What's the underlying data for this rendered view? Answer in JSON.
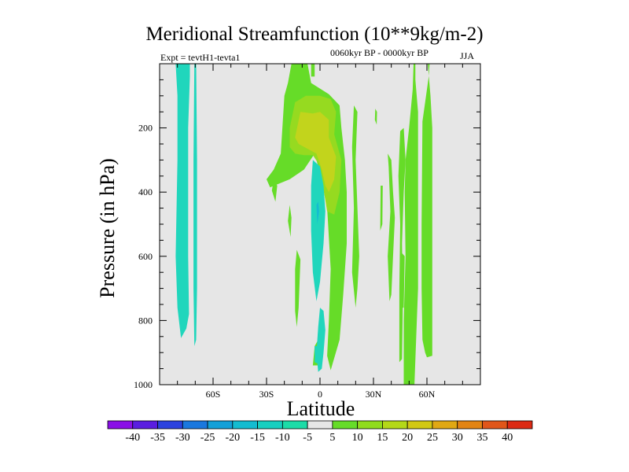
{
  "chart_data": {
    "type": "heatmap",
    "title": "Meridional Streamfunction (10**9kg/m-2)",
    "subtitle": "0060kyr BP - 0000kyr BP",
    "expt_label": "Expt = tevtH1-tevta1",
    "season": "JJA",
    "xlabel": "Latitude",
    "ylabel": "Pressure (in hPa)",
    "xlim": [
      -90,
      90
    ],
    "ylim": [
      1000,
      0
    ],
    "x_ticks": [
      {
        "value": -60,
        "label": "60S"
      },
      {
        "value": -30,
        "label": "30S"
      },
      {
        "value": 0,
        "label": "0"
      },
      {
        "value": 30,
        "label": "30N"
      },
      {
        "value": 60,
        "label": "60N"
      }
    ],
    "y_ticks": [
      {
        "value": 200,
        "label": "200"
      },
      {
        "value": 400,
        "label": "400"
      },
      {
        "value": 600,
        "label": "600"
      },
      {
        "value": 800,
        "label": "800"
      },
      {
        "value": 1000,
        "label": "1000"
      }
    ],
    "colorbar": {
      "labels": [
        "-40",
        "-35",
        "-30",
        "-25",
        "-20",
        "-15",
        "-10",
        "-5",
        "5",
        "10",
        "15",
        "20",
        "25",
        "30",
        "35",
        "40"
      ],
      "colors": [
        "#8a10e6",
        "#5a1ee0",
        "#2b42de",
        "#1a78de",
        "#14a0d8",
        "#14bcd0",
        "#18cfc0",
        "#1cdca8",
        "#e6e6e6",
        "#66dc28",
        "#90dc1c",
        "#b4d818",
        "#d2c814",
        "#e0a814",
        "#e28414",
        "#e0561a",
        "#dc2a14"
      ]
    },
    "regions": [
      {
        "level": "-10",
        "color": "#20d6bc",
        "pts": [
          [
            -81,
            0
          ],
          [
            -73,
            0
          ],
          [
            -73,
            40
          ],
          [
            -74,
            200
          ],
          [
            -74,
            600
          ],
          [
            -73.5,
            780
          ],
          [
            -75,
            825
          ],
          [
            -78,
            855
          ],
          [
            -80,
            760
          ],
          [
            -81,
            600
          ],
          [
            -80,
            300
          ],
          [
            -80,
            100
          ]
        ]
      },
      {
        "level": "-10",
        "color": "#20d6bc",
        "pts": [
          [
            -70.5,
            0
          ],
          [
            -69.5,
            0
          ],
          [
            -69,
            300
          ],
          [
            -69,
            700
          ],
          [
            -69.5,
            860
          ],
          [
            -70.5,
            880
          ],
          [
            -71,
            700
          ],
          [
            -71,
            300
          ]
        ]
      },
      {
        "level": "5",
        "color": "#66dc28",
        "pts": [
          [
            -16,
            0
          ],
          [
            -7,
            0
          ],
          [
            -5,
            60
          ],
          [
            5,
            95
          ],
          [
            11,
            130
          ],
          [
            12,
            200
          ],
          [
            14,
            300
          ],
          [
            15,
            400
          ],
          [
            15,
            560
          ],
          [
            13,
            720
          ],
          [
            11,
            860
          ],
          [
            6,
            955
          ],
          [
            4,
            910
          ],
          [
            5,
            800
          ],
          [
            6,
            640
          ],
          [
            4,
            450
          ],
          [
            0,
            340
          ],
          [
            -3,
            280
          ],
          [
            -9,
            330
          ],
          [
            -17,
            360
          ],
          [
            -28,
            385
          ],
          [
            -30,
            360
          ],
          [
            -26,
            330
          ],
          [
            -22,
            280
          ],
          [
            -20,
            100
          ],
          [
            -18,
            60
          ]
        ]
      },
      {
        "level": "10",
        "color": "#96da20",
        "pts": [
          [
            -17,
            200
          ],
          [
            -14,
            120
          ],
          [
            -8,
            100
          ],
          [
            0,
            100
          ],
          [
            6,
            110
          ],
          [
            9,
            150
          ],
          [
            8,
            220
          ],
          [
            12,
            300
          ],
          [
            11,
            400
          ],
          [
            8,
            470
          ],
          [
            4,
            460
          ],
          [
            2,
            390
          ],
          [
            -1,
            310
          ],
          [
            -4,
            285
          ],
          [
            -9,
            285
          ],
          [
            -14,
            280
          ],
          [
            -17,
            260
          ]
        ]
      },
      {
        "level": "15",
        "color": "#c2d41c",
        "pts": [
          [
            -14,
            230
          ],
          [
            -11,
            150
          ],
          [
            -4,
            155
          ],
          [
            0,
            150
          ],
          [
            5,
            175
          ],
          [
            5,
            230
          ],
          [
            9,
            290
          ],
          [
            8,
            360
          ],
          [
            5,
            400
          ],
          [
            3,
            380
          ],
          [
            1,
            330
          ],
          [
            -2,
            280
          ],
          [
            -7,
            265
          ],
          [
            -12,
            250
          ]
        ]
      },
      {
        "level": "5",
        "color": "#66dc28",
        "pts": [
          [
            -4,
            940
          ],
          [
            -3,
            880
          ],
          [
            -1,
            860
          ],
          [
            0,
            870
          ],
          [
            -1,
            940
          ]
        ]
      },
      {
        "level": "5",
        "color": "#66dc28",
        "pts": [
          [
            -13,
            580
          ],
          [
            -11,
            610
          ],
          [
            -12,
            760
          ],
          [
            -13,
            820
          ],
          [
            -14,
            770
          ],
          [
            -14,
            640
          ]
        ]
      },
      {
        "level": "5",
        "color": "#66dc28",
        "pts": [
          [
            -17,
            440
          ],
          [
            -16,
            480
          ],
          [
            -16.5,
            540
          ],
          [
            -18,
            490
          ]
        ]
      },
      {
        "level": "5",
        "color": "#66dc28",
        "pts": [
          [
            -26,
            360
          ],
          [
            -24,
            380
          ],
          [
            -25,
            430
          ],
          [
            -27,
            395
          ]
        ]
      },
      {
        "level": "5",
        "color": "#66dc28",
        "pts": [
          [
            -19,
            200
          ],
          [
            -17,
            235
          ],
          [
            -18,
            290
          ],
          [
            -20,
            240
          ]
        ]
      },
      {
        "level": "5",
        "color": "#66dc28",
        "pts": [
          [
            60.5,
            0
          ],
          [
            61.5,
            0
          ],
          [
            61,
            40
          ],
          [
            57.5,
            180
          ],
          [
            57,
            500
          ],
          [
            57,
            700
          ],
          [
            57.5,
            860
          ],
          [
            59,
            900
          ],
          [
            60,
            915
          ],
          [
            63,
            910
          ],
          [
            63,
            700
          ],
          [
            63,
            200
          ],
          [
            62,
            100
          ]
        ]
      },
      {
        "level": "5",
        "color": "#66dc28",
        "pts": [
          [
            52.5,
            0
          ],
          [
            53.5,
            0
          ],
          [
            53.5,
            50
          ],
          [
            55,
            150
          ],
          [
            55,
            700
          ],
          [
            54,
            850
          ],
          [
            53,
            1000
          ],
          [
            47,
            1000
          ],
          [
            47,
            800
          ],
          [
            48,
            600
          ],
          [
            47.5,
            400
          ],
          [
            48,
            300
          ],
          [
            50,
            200
          ],
          [
            52,
            80
          ]
        ]
      },
      {
        "level": "5",
        "color": "#66dc28",
        "pts": [
          [
            50,
            500
          ],
          [
            51,
            550
          ],
          [
            51,
            900
          ],
          [
            52,
            1000
          ],
          [
            50,
            1000
          ],
          [
            49.5,
            800
          ]
        ]
      },
      {
        "level": "5",
        "color": "#66dc28",
        "pts": [
          [
            45,
            210
          ],
          [
            47,
            200
          ],
          [
            48,
            300
          ],
          [
            47,
            400
          ],
          [
            46,
            560
          ],
          [
            46.5,
            740
          ],
          [
            46,
            920
          ],
          [
            44.5,
            930
          ],
          [
            44.5,
            700
          ],
          [
            45,
            500
          ],
          [
            44,
            350
          ]
        ]
      },
      {
        "level": "5",
        "color": "#66dc28",
        "pts": [
          [
            38,
            280
          ],
          [
            40,
            300
          ],
          [
            41,
            400
          ],
          [
            42,
            480
          ],
          [
            41,
            600
          ],
          [
            40,
            720
          ],
          [
            39,
            740
          ],
          [
            38,
            600
          ],
          [
            39.5,
            460
          ],
          [
            38.5,
            320
          ]
        ]
      },
      {
        "level": "5",
        "color": "#66dc28",
        "pts": [
          [
            19,
            130
          ],
          [
            21,
            150
          ],
          [
            20,
            300
          ],
          [
            21,
            450
          ],
          [
            22,
            600
          ],
          [
            21,
            700
          ],
          [
            20,
            760
          ],
          [
            18,
            650
          ],
          [
            19,
            450
          ],
          [
            18,
            260
          ]
        ]
      },
      {
        "level": "5",
        "color": "#66dc28",
        "pts": [
          [
            31,
            140
          ],
          [
            32,
            150
          ],
          [
            31.8,
            190
          ],
          [
            30.8,
            175
          ]
        ]
      },
      {
        "level": "5",
        "color": "#66dc28",
        "pts": [
          [
            34,
            380
          ],
          [
            35.2,
            380
          ],
          [
            35,
            500
          ],
          [
            33.8,
            520
          ]
        ]
      },
      {
        "level": "5",
        "color": "#66dc28",
        "pts": [
          [
            46,
            590
          ],
          [
            47.5,
            600
          ],
          [
            47,
            760
          ],
          [
            45.5,
            760
          ]
        ]
      },
      {
        "level": "5",
        "color": "#66dc28",
        "pts": [
          [
            -5,
            0
          ],
          [
            -3,
            0
          ],
          [
            -3,
            40
          ],
          [
            -5,
            40
          ]
        ]
      },
      {
        "level": "-10",
        "color": "#20d6bc",
        "pts": [
          [
            -4,
            300
          ],
          [
            0,
            320
          ],
          [
            2,
            380
          ],
          [
            3,
            460
          ],
          [
            2,
            560
          ],
          [
            0,
            680
          ],
          [
            -2,
            740
          ],
          [
            -4,
            650
          ],
          [
            -5,
            520
          ],
          [
            -5,
            380
          ]
        ]
      },
      {
        "level": "-15",
        "color": "#14bcd0",
        "pts": [
          [
            -2,
            440
          ],
          [
            -1,
            430
          ],
          [
            -0.5,
            460
          ],
          [
            -1.5,
            500
          ]
        ]
      },
      {
        "level": "-10",
        "color": "#20d6bc",
        "pts": [
          [
            0,
            760
          ],
          [
            2,
            770
          ],
          [
            3,
            830
          ],
          [
            2,
            900
          ],
          [
            1,
            950
          ],
          [
            -1,
            960
          ],
          [
            -2,
            900
          ],
          [
            -1,
            820
          ]
        ]
      },
      {
        "level": "-10",
        "color": "#20d6bc",
        "pts": [
          [
            -3,
            880
          ],
          [
            -1,
            880
          ],
          [
            -1,
            935
          ],
          [
            -3,
            930
          ]
        ]
      }
    ]
  }
}
